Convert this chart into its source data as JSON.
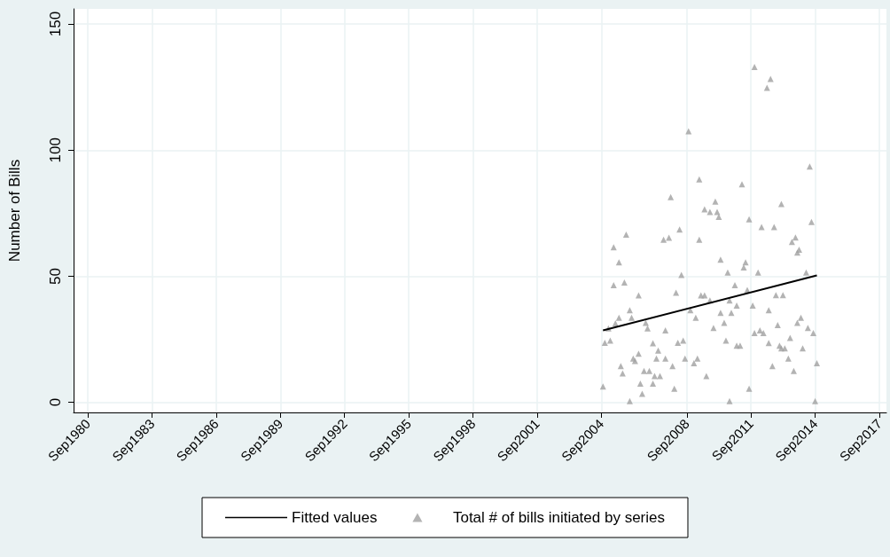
{
  "chart_data": {
    "type": "scatter",
    "ylabel": "Number of Bills",
    "xlim": [
      "1980-01",
      "2018-01"
    ],
    "xticks": [
      {
        "value": "1980-09",
        "label": "Sep1980"
      },
      {
        "value": "1983-09",
        "label": "Sep1983"
      },
      {
        "value": "1986-09",
        "label": "Sep1986"
      },
      {
        "value": "1989-09",
        "label": "Sep1989"
      },
      {
        "value": "1992-09",
        "label": "Sep1992"
      },
      {
        "value": "1995-09",
        "label": "Sep1995"
      },
      {
        "value": "1998-09",
        "label": "Sep1998"
      },
      {
        "value": "2001-09",
        "label": "Sep2001"
      },
      {
        "value": "2004-09",
        "label": "Sep2004"
      },
      {
        "value": "2008-09",
        "label": "Sep2008"
      },
      {
        "value": "2011-09",
        "label": "Sep2011"
      },
      {
        "value": "2014-09",
        "label": "Sep2014"
      },
      {
        "value": "2017-09",
        "label": "Sep2017"
      }
    ],
    "ylim": [
      -4,
      156
    ],
    "yticks": [
      0,
      50,
      100,
      150
    ],
    "grid": true,
    "legend": "bottom",
    "series": [
      {
        "name": "Fitted values",
        "type": "line",
        "marker": "none",
        "color": "#000000",
        "x": [
          "2004-10",
          "2014-10"
        ],
        "values": [
          28.5,
          50.3
        ]
      },
      {
        "name": "Total # of bills initiated by series",
        "marker": "triangle",
        "color": "#a0a0a0",
        "x": [
          "2008-10",
          "2009-04",
          "2007-12",
          "2009-07",
          "2009-10",
          "2005-11",
          "2007-08",
          "2007-11",
          "2008-05",
          "2009-04",
          "2005-04",
          "2005-07",
          "2008-06",
          "2005-04",
          "2005-10",
          "2006-06",
          "2008-03",
          "2009-05",
          "2009-07",
          "2009-10",
          "2006-01",
          "2005-07",
          "2006-02",
          "2005-05",
          "2006-10",
          "2008-11",
          "2009-02",
          "2005-01",
          "2006-11",
          "2007-09",
          "2004-11",
          "2005-02",
          "2007-02",
          "2008-04",
          "2008-07",
          "2006-06",
          "2006-03",
          "2006-04",
          "2007-05",
          "2007-04",
          "2007-09",
          "2008-08",
          "2009-03",
          "2009-01",
          "2005-08",
          "2005-09",
          "2006-09",
          "2006-12",
          "2008-01",
          "2007-03",
          "2007-06",
          "2009-08",
          "2006-07",
          "2007-02",
          "2008-02",
          "2006-08",
          "2004-10",
          "2006-01",
          "2012-08",
          "2012-06",
          "2011-11",
          "2014-06",
          "2011-04",
          "2010-01",
          "2010-02",
          "2010-03",
          "2013-02",
          "2011-08",
          "2014-07",
          "2012-03",
          "2012-10",
          "2013-10",
          "2013-08",
          "2013-12",
          "2013-11",
          "2010-04",
          "2011-06",
          "2011-05",
          "2010-08",
          "2012-01",
          "2014-04",
          "2010-12",
          "2011-07",
          "2012-11",
          "2013-03",
          "2010-09",
          "2011-01",
          "2011-10",
          "2012-07",
          "2010-04",
          "2010-10",
          "2014-01",
          "2010-06",
          "2013-11",
          "2012-12",
          "2009-12",
          "2014-05",
          "2012-02",
          "2011-11",
          "2012-04",
          "2014-08",
          "2013-07",
          "2010-07",
          "2012-07",
          "2011-01",
          "2011-03",
          "2013-01",
          "2013-02",
          "2013-04",
          "2014-02",
          "2013-06",
          "2014-10",
          "2012-09",
          "2013-09",
          "2011-08",
          "2010-09",
          "2014-09"
        ],
        "values": [
          107.5,
          88.4,
          81.4,
          76.5,
          75.5,
          66.5,
          64.5,
          65.3,
          68.5,
          64.5,
          61.5,
          55.5,
          50.5,
          46.5,
          47.5,
          42.4,
          43.5,
          42.4,
          42.4,
          40.4,
          36.5,
          33.5,
          33.5,
          31.3,
          31.5,
          36.5,
          33.5,
          29.3,
          29.3,
          28.5,
          23.6,
          24.5,
          23.4,
          23.6,
          24.5,
          19.3,
          17.4,
          16.4,
          20.5,
          17.4,
          17.4,
          17.4,
          17.4,
          15.5,
          14.4,
          11.5,
          12.4,
          12.4,
          14.4,
          10.4,
          10.4,
          10.4,
          7.4,
          7.4,
          5.4,
          3.4,
          6.3,
          0.5,
          128.2,
          124.7,
          133,
          93.5,
          86.5,
          79.6,
          75.5,
          73.5,
          78.6,
          72.6,
          71.5,
          69.5,
          69.5,
          65.4,
          63.6,
          60.5,
          59.4,
          56.6,
          55.5,
          53.5,
          51.5,
          51.5,
          51.5,
          46.5,
          44.5,
          42.5,
          42.5,
          40.4,
          38.4,
          38.4,
          36.5,
          35.5,
          35.5,
          33.5,
          31.5,
          31.5,
          30.6,
          29.5,
          29.5,
          28.5,
          27.5,
          27.5,
          27.5,
          25.5,
          24.5,
          23.5,
          22.5,
          22.5,
          22.5,
          21.4,
          21.4,
          21.4,
          17.4,
          15.5,
          14.4,
          12.4,
          5.4,
          0.5,
          0.5
        ]
      }
    ]
  }
}
